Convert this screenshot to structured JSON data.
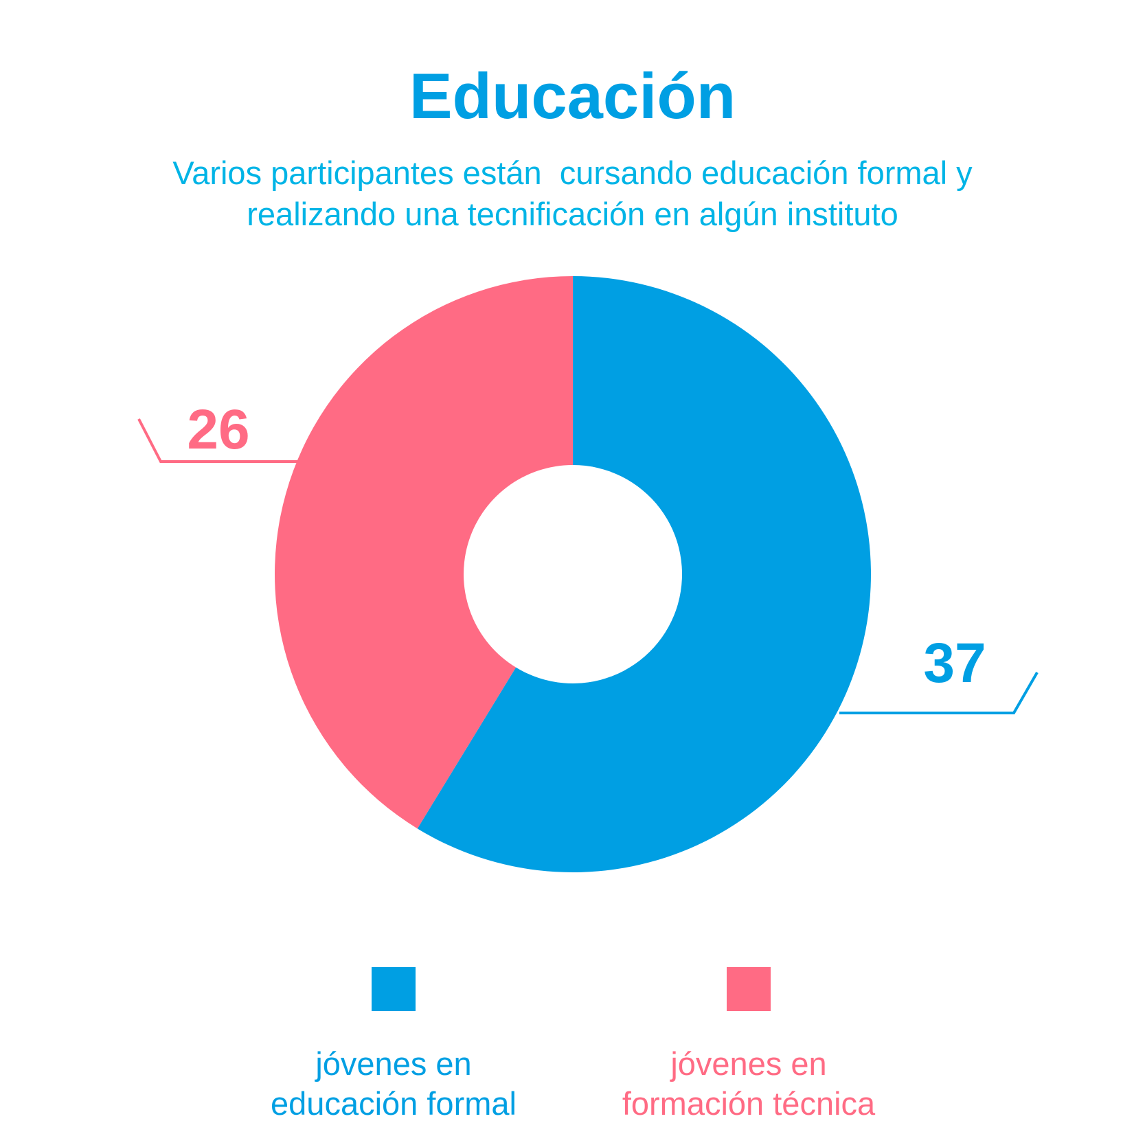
{
  "title": "Educación",
  "subtitle": {
    "line1": "Varios participantes están  cursando educación formal y",
    "line2": "realizando una tecnificación en algún instituto"
  },
  "chart_data": {
    "type": "pie",
    "variant": "donut",
    "title": "Educación",
    "series": [
      {
        "name": "jóvenes en educación formal",
        "value": 37,
        "color": "#009fe3",
        "label_lines": [
          "jóvenes en",
          "educación formal"
        ]
      },
      {
        "name": "jóvenes en formación técnica",
        "value": 26,
        "color": "#ff6b84",
        "label_lines": [
          "jóvenes en",
          "formación técnica"
        ]
      }
    ],
    "legend_position": "bottom",
    "data_labels": [
      "37",
      "26"
    ]
  }
}
